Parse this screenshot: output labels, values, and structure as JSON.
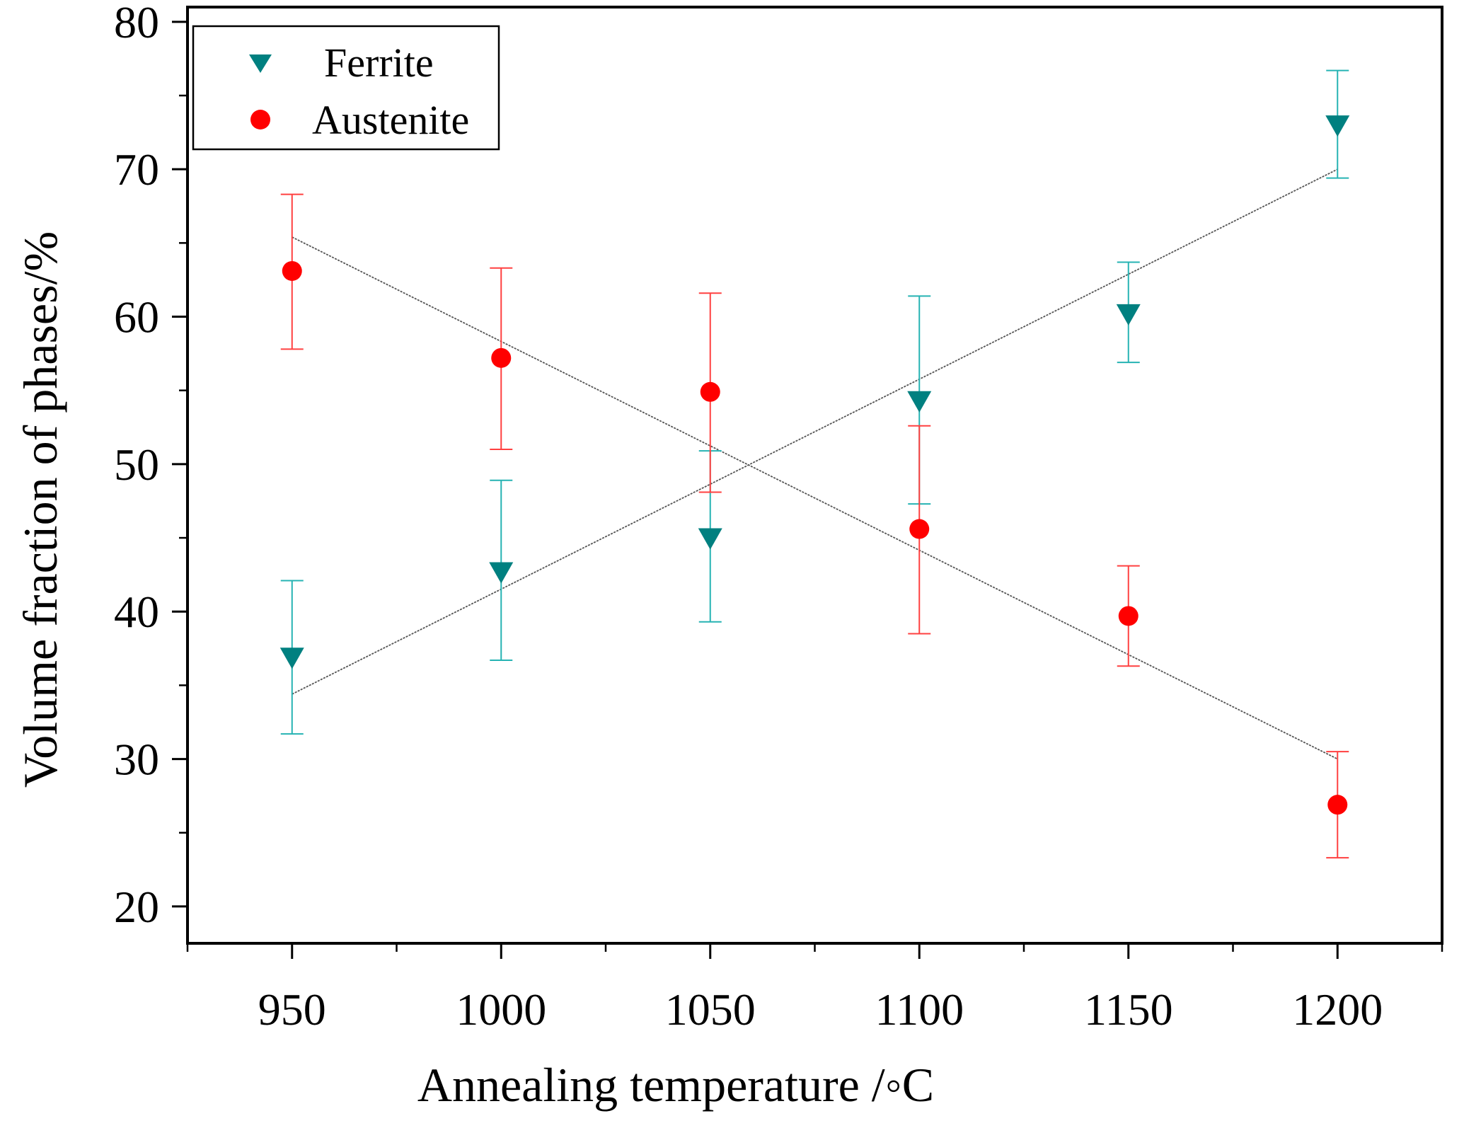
{
  "chart_data": {
    "type": "scatter",
    "title": "",
    "xlabel": "Annealing temperature /◦C",
    "ylabel": "Volume fraction of phases/%",
    "xlim": [
      925,
      1225
    ],
    "ylim": [
      17.5,
      81
    ],
    "x_ticks": [
      950,
      1000,
      1050,
      1100,
      1150,
      1200
    ],
    "x_tick_labels": [
      "950",
      "1000",
      "1050",
      "1100",
      "1150",
      "1200"
    ],
    "y_ticks": [
      20,
      30,
      40,
      50,
      60,
      70,
      80
    ],
    "y_tick_labels": [
      "20",
      "30",
      "40",
      "50",
      "60",
      "70",
      "80"
    ],
    "grid": false,
    "legend_position": "top-left",
    "series": [
      {
        "name": "Ferrite",
        "marker": "triangle-down",
        "color": "#008080",
        "errorbar_color": "#26B3B3",
        "x": [
          950,
          1000,
          1050,
          1100,
          1150,
          1200
        ],
        "y": [
          36.9,
          42.7,
          45.0,
          54.3,
          60.2,
          73.0
        ],
        "err_low": [
          31.7,
          36.7,
          39.3,
          47.3,
          56.9,
          69.4
        ],
        "err_high": [
          42.1,
          48.9,
          50.9,
          61.4,
          63.7,
          76.7
        ],
        "fit": {
          "x": [
            950,
            1200
          ],
          "y": [
            34.4,
            70.0
          ]
        }
      },
      {
        "name": "Austenite",
        "marker": "circle",
        "color": "#FF0000",
        "errorbar_color": "#FF4040",
        "x": [
          950,
          1000,
          1050,
          1100,
          1150,
          1200
        ],
        "y": [
          63.1,
          57.2,
          54.9,
          45.6,
          39.7,
          26.9
        ],
        "err_low": [
          57.8,
          51.0,
          48.1,
          38.5,
          36.3,
          23.3
        ],
        "err_high": [
          68.3,
          63.3,
          61.6,
          52.6,
          43.1,
          30.5
        ],
        "fit": {
          "x": [
            950,
            1200
          ],
          "y": [
            65.4,
            30.0
          ]
        }
      }
    ]
  }
}
